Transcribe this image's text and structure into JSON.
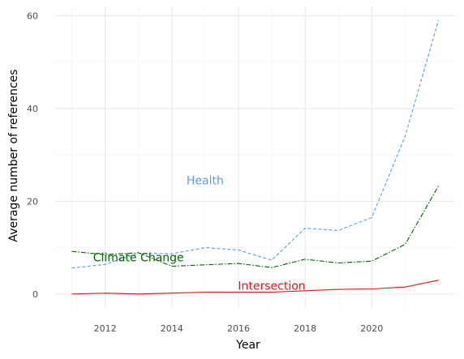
{
  "chart_data": {
    "type": "line",
    "title": "",
    "xlabel": "Year",
    "ylabel": "Average number of references",
    "xlim": [
      2010.5,
      2022.5
    ],
    "ylim": [
      -3,
      62
    ],
    "x_ticks": [
      2012,
      2014,
      2016,
      2018,
      2020
    ],
    "y_ticks": [
      0,
      20,
      40,
      60
    ],
    "grid": true,
    "legend": "none",
    "series": [
      {
        "name": "Health",
        "color": "#5b9bf0",
        "dash": "dashed",
        "label_at": {
          "x": 2015.0,
          "y": 24.5
        },
        "points": [
          {
            "x": 2011,
            "y": 5.6
          },
          {
            "x": 2012,
            "y": 6.4
          },
          {
            "x": 2013,
            "y": 8.8
          },
          {
            "x": 2014,
            "y": 8.7
          },
          {
            "x": 2015,
            "y": 10.0
          },
          {
            "x": 2016,
            "y": 9.5
          },
          {
            "x": 2017,
            "y": 7.3
          },
          {
            "x": 2018,
            "y": 14.2
          },
          {
            "x": 2019,
            "y": 13.7
          },
          {
            "x": 2020,
            "y": 16.5
          },
          {
            "x": 2021,
            "y": 34.0
          },
          {
            "x": 2022,
            "y": 59.0
          }
        ]
      },
      {
        "name": "Climate Change",
        "color": "#006400",
        "dash": "dotdash",
        "label_at": {
          "x": 2013.0,
          "y": 7.9
        },
        "points": [
          {
            "x": 2011,
            "y": 9.2
          },
          {
            "x": 2012,
            "y": 8.5
          },
          {
            "x": 2013,
            "y": 8.9
          },
          {
            "x": 2014,
            "y": 6.0
          },
          {
            "x": 2015,
            "y": 6.3
          },
          {
            "x": 2016,
            "y": 6.6
          },
          {
            "x": 2017,
            "y": 5.7
          },
          {
            "x": 2018,
            "y": 7.5
          },
          {
            "x": 2019,
            "y": 6.7
          },
          {
            "x": 2020,
            "y": 7.1
          },
          {
            "x": 2021,
            "y": 10.7
          },
          {
            "x": 2022,
            "y": 23.3
          }
        ]
      },
      {
        "name": "Intersection",
        "color": "#ee1111",
        "dash": "solid",
        "label_at": {
          "x": 2017.0,
          "y": 1.8
        },
        "points": [
          {
            "x": 2011,
            "y": 0.0
          },
          {
            "x": 2012,
            "y": 0.2
          },
          {
            "x": 2013,
            "y": 0.0
          },
          {
            "x": 2014,
            "y": 0.2
          },
          {
            "x": 2015,
            "y": 0.4
          },
          {
            "x": 2016,
            "y": 0.4
          },
          {
            "x": 2017,
            "y": 0.4
          },
          {
            "x": 2018,
            "y": 0.7
          },
          {
            "x": 2019,
            "y": 1.0
          },
          {
            "x": 2020,
            "y": 1.1
          },
          {
            "x": 2021,
            "y": 1.5
          },
          {
            "x": 2022,
            "y": 3.0
          }
        ]
      }
    ]
  }
}
